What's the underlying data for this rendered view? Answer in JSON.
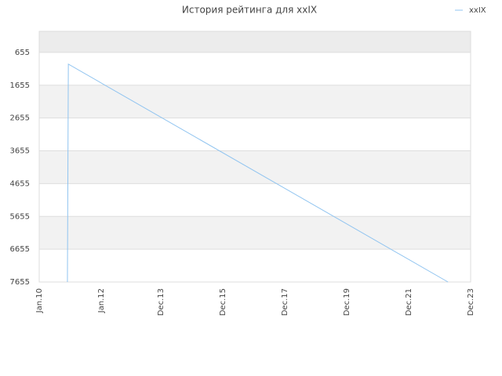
{
  "chart_data": {
    "type": "line",
    "title": "История рейтинга для xxIX",
    "x": [
      2010.91,
      2010.94,
      2023.19
    ],
    "series": [
      {
        "name": "xxIX",
        "color": "#90c4f0",
        "values": [
          7655,
          1012,
          7655
        ]
      }
    ],
    "xlim": [
      2010,
      2023.92
    ],
    "xticks": [
      {
        "value": 2010,
        "label": "Jan.10"
      },
      {
        "value": 2012,
        "label": "Jan.12"
      },
      {
        "value": 2013.92,
        "label": "Dec.13"
      },
      {
        "value": 2015.92,
        "label": "Dec.15"
      },
      {
        "value": 2017.92,
        "label": "Dec.17"
      },
      {
        "value": 2019.92,
        "label": "Dec.19"
      },
      {
        "value": 2021.92,
        "label": "Dec.21"
      },
      {
        "value": 2023.92,
        "label": "Dec.23"
      }
    ],
    "ylim": [
      12,
      7655
    ],
    "y_inverted": true,
    "yticks": [
      655,
      1655,
      2655,
      3655,
      4655,
      5655,
      6655,
      7655
    ],
    "grid": true,
    "legend": "top-right"
  }
}
